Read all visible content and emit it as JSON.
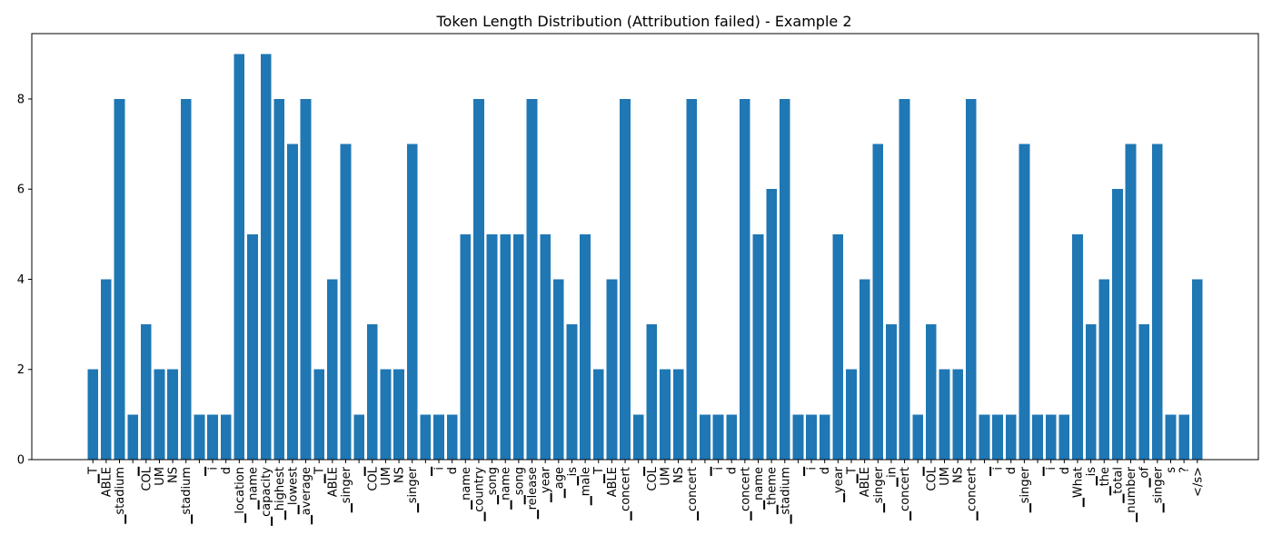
{
  "chart_data": {
    "type": "bar",
    "title": "Token Length Distribution (Attribution failed) - Example 2",
    "xlabel": "",
    "ylabel": "",
    "ylim": [
      0,
      9.45
    ],
    "yticks": [
      0,
      2,
      4,
      6,
      8
    ],
    "grid": false,
    "bar_color": "#1f77b4",
    "categories": [
      "▁T",
      "ABLE",
      "▁stadium",
      "▁",
      "COL",
      "UM",
      "NS",
      "▁stadium",
      "▁",
      "i",
      "d",
      "▁location",
      "▁name",
      "▁capacity",
      "▁highest",
      "▁lowest",
      "▁average",
      "▁T",
      "ABLE",
      "▁singer",
      "▁",
      "COL",
      "UM",
      "NS",
      "▁singer",
      "▁",
      "i",
      "d",
      "▁name",
      "▁country",
      "▁song",
      "▁name",
      "▁song",
      "▁release",
      "▁year",
      "▁age",
      "▁is",
      "▁male",
      "▁T",
      "ABLE",
      "▁concert",
      "▁",
      "COL",
      "UM",
      "NS",
      "▁concert",
      "▁",
      "i",
      "d",
      "▁concert",
      "▁name",
      "▁theme",
      "▁stadium",
      "▁",
      "i",
      "d",
      "▁year",
      "▁T",
      "ABLE",
      "▁singer",
      "▁in",
      "▁concert",
      "▁",
      "COL",
      "UM",
      "NS",
      "▁concert",
      "▁",
      "i",
      "d",
      "▁singer",
      "▁",
      "i",
      "d",
      "▁What",
      "▁is",
      "▁the",
      "▁total",
      "▁number",
      "▁of",
      "▁singer",
      "s",
      "?",
      "</s>"
    ],
    "values": [
      2,
      4,
      8,
      1,
      3,
      2,
      2,
      8,
      1,
      1,
      1,
      9,
      5,
      9,
      8,
      7,
      8,
      2,
      4,
      7,
      1,
      3,
      2,
      2,
      7,
      1,
      1,
      1,
      5,
      8,
      5,
      5,
      5,
      8,
      5,
      4,
      3,
      5,
      2,
      4,
      8,
      1,
      3,
      2,
      2,
      8,
      1,
      1,
      1,
      8,
      5,
      6,
      8,
      1,
      1,
      1,
      5,
      2,
      4,
      7,
      3,
      8,
      1,
      3,
      2,
      2,
      8,
      1,
      1,
      1,
      7,
      1,
      1,
      1,
      5,
      3,
      4,
      6,
      7,
      3,
      7,
      1,
      1,
      4
    ]
  }
}
